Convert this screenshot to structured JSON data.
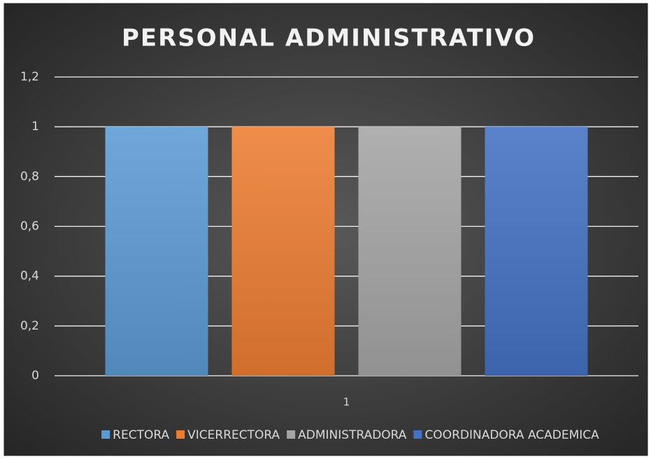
{
  "chart_data": {
    "type": "bar",
    "title": "PERSONAL ADMINISTRATIVO",
    "categories": [
      1
    ],
    "series": [
      {
        "name": "RECTORA",
        "color": "#5b9bd5",
        "values": [
          1
        ]
      },
      {
        "name": "VICERRECTORA",
        "color": "#ed7d31",
        "values": [
          1
        ]
      },
      {
        "name": "ADMINISTRADORA",
        "color": "#a5a5a5",
        "values": [
          1
        ]
      },
      {
        "name": "COORDINADORA ACADEMICA",
        "color": "#4472c4",
        "values": [
          1
        ]
      }
    ],
    "ylim": [
      0,
      1.2
    ],
    "yticks": [
      0,
      {
        "value": 0.2,
        "label": "0,2"
      },
      {
        "value": 0.4,
        "label": "0,4"
      },
      {
        "value": 0.6,
        "label": "0,6"
      },
      {
        "value": 0.8,
        "label": "0,8"
      },
      1,
      {
        "value": 1.2,
        "label": "1,2"
      }
    ],
    "grid": true,
    "legend": "bottom"
  }
}
